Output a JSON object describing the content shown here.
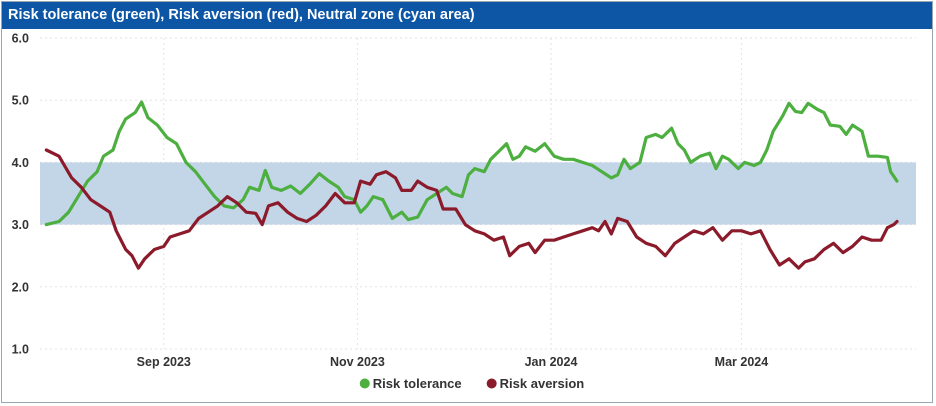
{
  "chart_data": {
    "type": "line",
    "title": "Risk tolerance (green), Risk aversion (red), Neutral zone (cyan area)",
    "ylim": [
      1.0,
      6.0
    ],
    "yticks": [
      "1.0",
      "2.0",
      "3.0",
      "4.0",
      "5.0",
      "6.0"
    ],
    "xlim": [
      "2023-07-24",
      "2024-04-25"
    ],
    "xticks": [
      {
        "date": "2023-09-01",
        "label": "Sep 2023"
      },
      {
        "date": "2023-11-01",
        "label": "Nov 2023"
      },
      {
        "date": "2024-01-01",
        "label": "Jan 2024"
      },
      {
        "date": "2024-03-01",
        "label": "Mar 2024"
      }
    ],
    "band": {
      "name": "Neutral zone",
      "lower": 3.0,
      "upper": 4.0,
      "color": "#c3d6e8"
    },
    "grid": true,
    "legend_position": "bottom",
    "series": [
      {
        "name": "Risk tolerance",
        "color": "#4caf3f",
        "points": [
          [
            "2023-07-26",
            3.0
          ],
          [
            "2023-07-30",
            3.05
          ],
          [
            "2023-08-02",
            3.2
          ],
          [
            "2023-08-05",
            3.45
          ],
          [
            "2023-08-08",
            3.7
          ],
          [
            "2023-08-11",
            3.85
          ],
          [
            "2023-08-13",
            4.1
          ],
          [
            "2023-08-16",
            4.2
          ],
          [
            "2023-08-18",
            4.5
          ],
          [
            "2023-08-20",
            4.7
          ],
          [
            "2023-08-23",
            4.8
          ],
          [
            "2023-08-25",
            4.97
          ],
          [
            "2023-08-27",
            4.72
          ],
          [
            "2023-08-30",
            4.6
          ],
          [
            "2023-09-02",
            4.4
          ],
          [
            "2023-09-05",
            4.3
          ],
          [
            "2023-09-08",
            4.0
          ],
          [
            "2023-09-11",
            3.85
          ],
          [
            "2023-09-14",
            3.65
          ],
          [
            "2023-09-17",
            3.45
          ],
          [
            "2023-09-20",
            3.3
          ],
          [
            "2023-09-23",
            3.27
          ],
          [
            "2023-09-26",
            3.4
          ],
          [
            "2023-09-28",
            3.6
          ],
          [
            "2023-10-01",
            3.55
          ],
          [
            "2023-10-03",
            3.87
          ],
          [
            "2023-10-05",
            3.6
          ],
          [
            "2023-10-08",
            3.55
          ],
          [
            "2023-10-11",
            3.62
          ],
          [
            "2023-10-14",
            3.5
          ],
          [
            "2023-10-17",
            3.65
          ],
          [
            "2023-10-20",
            3.82
          ],
          [
            "2023-10-23",
            3.7
          ],
          [
            "2023-10-26",
            3.6
          ],
          [
            "2023-10-28",
            3.45
          ],
          [
            "2023-10-31",
            3.4
          ],
          [
            "2023-11-02",
            3.2
          ],
          [
            "2023-11-04",
            3.3
          ],
          [
            "2023-11-06",
            3.45
          ],
          [
            "2023-11-09",
            3.4
          ],
          [
            "2023-11-12",
            3.1
          ],
          [
            "2023-11-15",
            3.2
          ],
          [
            "2023-11-17",
            3.08
          ],
          [
            "2023-11-20",
            3.12
          ],
          [
            "2023-11-23",
            3.4
          ],
          [
            "2023-11-26",
            3.5
          ],
          [
            "2023-11-29",
            3.6
          ],
          [
            "2023-12-01",
            3.5
          ],
          [
            "2023-12-04",
            3.45
          ],
          [
            "2023-12-06",
            3.8
          ],
          [
            "2023-12-08",
            3.9
          ],
          [
            "2023-12-11",
            3.85
          ],
          [
            "2023-12-13",
            4.05
          ],
          [
            "2023-12-16",
            4.2
          ],
          [
            "2023-12-18",
            4.3
          ],
          [
            "2023-12-20",
            4.05
          ],
          [
            "2023-12-22",
            4.1
          ],
          [
            "2023-12-24",
            4.25
          ],
          [
            "2023-12-27",
            4.18
          ],
          [
            "2023-12-30",
            4.3
          ],
          [
            "2024-01-02",
            4.1
          ],
          [
            "2024-01-05",
            4.05
          ],
          [
            "2024-01-08",
            4.05
          ],
          [
            "2024-01-11",
            4.0
          ],
          [
            "2024-01-14",
            3.95
          ],
          [
            "2024-01-17",
            3.85
          ],
          [
            "2024-01-20",
            3.75
          ],
          [
            "2024-01-22",
            3.8
          ],
          [
            "2024-01-24",
            4.05
          ],
          [
            "2024-01-26",
            3.9
          ],
          [
            "2024-01-29",
            4.0
          ],
          [
            "2024-01-31",
            4.4
          ],
          [
            "2024-02-03",
            4.45
          ],
          [
            "2024-02-05",
            4.4
          ],
          [
            "2024-02-08",
            4.55
          ],
          [
            "2024-02-10",
            4.3
          ],
          [
            "2024-02-12",
            4.2
          ],
          [
            "2024-02-14",
            4.0
          ],
          [
            "2024-02-17",
            4.1
          ],
          [
            "2024-02-20",
            4.15
          ],
          [
            "2024-02-22",
            3.9
          ],
          [
            "2024-02-24",
            4.1
          ],
          [
            "2024-02-26",
            4.05
          ],
          [
            "2024-02-29",
            3.9
          ],
          [
            "2024-03-02",
            4.0
          ],
          [
            "2024-03-05",
            3.95
          ],
          [
            "2024-03-07",
            4.0
          ],
          [
            "2024-03-09",
            4.2
          ],
          [
            "2024-03-11",
            4.5
          ],
          [
            "2024-03-14",
            4.75
          ],
          [
            "2024-03-16",
            4.95
          ],
          [
            "2024-03-18",
            4.82
          ],
          [
            "2024-03-20",
            4.8
          ],
          [
            "2024-03-22",
            4.95
          ],
          [
            "2024-03-25",
            4.85
          ],
          [
            "2024-03-27",
            4.8
          ],
          [
            "2024-03-29",
            4.6
          ],
          [
            "2024-04-01",
            4.58
          ],
          [
            "2024-04-03",
            4.45
          ],
          [
            "2024-04-05",
            4.6
          ],
          [
            "2024-04-08",
            4.5
          ],
          [
            "2024-04-10",
            4.1
          ],
          [
            "2024-04-13",
            4.1
          ],
          [
            "2024-04-16",
            4.08
          ],
          [
            "2024-04-17",
            3.85
          ],
          [
            "2024-04-19",
            3.7
          ]
        ]
      },
      {
        "name": "Risk aversion",
        "color": "#8b1a2a",
        "points": [
          [
            "2023-07-26",
            4.2
          ],
          [
            "2023-07-30",
            4.1
          ],
          [
            "2023-08-03",
            3.75
          ],
          [
            "2023-08-06",
            3.6
          ],
          [
            "2023-08-09",
            3.4
          ],
          [
            "2023-08-12",
            3.3
          ],
          [
            "2023-08-15",
            3.2
          ],
          [
            "2023-08-17",
            2.9
          ],
          [
            "2023-08-20",
            2.6
          ],
          [
            "2023-08-22",
            2.5
          ],
          [
            "2023-08-24",
            2.3
          ],
          [
            "2023-08-26",
            2.45
          ],
          [
            "2023-08-29",
            2.6
          ],
          [
            "2023-09-01",
            2.65
          ],
          [
            "2023-09-03",
            2.8
          ],
          [
            "2023-09-06",
            2.85
          ],
          [
            "2023-09-09",
            2.9
          ],
          [
            "2023-09-12",
            3.1
          ],
          [
            "2023-09-15",
            3.2
          ],
          [
            "2023-09-18",
            3.3
          ],
          [
            "2023-09-21",
            3.45
          ],
          [
            "2023-09-24",
            3.35
          ],
          [
            "2023-09-27",
            3.2
          ],
          [
            "2023-09-30",
            3.18
          ],
          [
            "2023-10-02",
            3.0
          ],
          [
            "2023-10-04",
            3.3
          ],
          [
            "2023-10-07",
            3.35
          ],
          [
            "2023-10-10",
            3.2
          ],
          [
            "2023-10-13",
            3.1
          ],
          [
            "2023-10-16",
            3.05
          ],
          [
            "2023-10-19",
            3.15
          ],
          [
            "2023-10-22",
            3.3
          ],
          [
            "2023-10-25",
            3.5
          ],
          [
            "2023-10-28",
            3.35
          ],
          [
            "2023-10-31",
            3.35
          ],
          [
            "2023-11-02",
            3.7
          ],
          [
            "2023-11-05",
            3.65
          ],
          [
            "2023-11-07",
            3.8
          ],
          [
            "2023-11-10",
            3.85
          ],
          [
            "2023-11-13",
            3.75
          ],
          [
            "2023-11-15",
            3.55
          ],
          [
            "2023-11-18",
            3.55
          ],
          [
            "2023-11-20",
            3.7
          ],
          [
            "2023-11-23",
            3.6
          ],
          [
            "2023-11-26",
            3.55
          ],
          [
            "2023-11-28",
            3.25
          ],
          [
            "2023-12-02",
            3.25
          ],
          [
            "2023-12-05",
            3.0
          ],
          [
            "2023-12-08",
            2.9
          ],
          [
            "2023-12-11",
            2.85
          ],
          [
            "2023-12-14",
            2.75
          ],
          [
            "2023-12-17",
            2.8
          ],
          [
            "2023-12-19",
            2.5
          ],
          [
            "2023-12-22",
            2.65
          ],
          [
            "2023-12-25",
            2.7
          ],
          [
            "2023-12-27",
            2.55
          ],
          [
            "2023-12-30",
            2.75
          ],
          [
            "2024-01-02",
            2.75
          ],
          [
            "2024-01-05",
            2.8
          ],
          [
            "2024-01-08",
            2.85
          ],
          [
            "2024-01-11",
            2.9
          ],
          [
            "2024-01-14",
            2.95
          ],
          [
            "2024-01-16",
            2.9
          ],
          [
            "2024-01-18",
            3.05
          ],
          [
            "2024-01-20",
            2.85
          ],
          [
            "2024-01-22",
            3.1
          ],
          [
            "2024-01-25",
            3.05
          ],
          [
            "2024-01-28",
            2.8
          ],
          [
            "2024-01-31",
            2.7
          ],
          [
            "2024-02-03",
            2.65
          ],
          [
            "2024-02-06",
            2.5
          ],
          [
            "2024-02-09",
            2.7
          ],
          [
            "2024-02-12",
            2.8
          ],
          [
            "2024-02-15",
            2.9
          ],
          [
            "2024-02-18",
            2.85
          ],
          [
            "2024-02-21",
            2.95
          ],
          [
            "2024-02-24",
            2.75
          ],
          [
            "2024-02-27",
            2.9
          ],
          [
            "2024-03-01",
            2.9
          ],
          [
            "2024-03-04",
            2.85
          ],
          [
            "2024-03-07",
            2.9
          ],
          [
            "2024-03-10",
            2.6
          ],
          [
            "2024-03-13",
            2.35
          ],
          [
            "2024-03-16",
            2.45
          ],
          [
            "2024-03-19",
            2.3
          ],
          [
            "2024-03-21",
            2.4
          ],
          [
            "2024-03-24",
            2.45
          ],
          [
            "2024-03-27",
            2.6
          ],
          [
            "2024-03-30",
            2.7
          ],
          [
            "2024-04-02",
            2.55
          ],
          [
            "2024-04-05",
            2.65
          ],
          [
            "2024-04-08",
            2.8
          ],
          [
            "2024-04-11",
            2.75
          ],
          [
            "2024-04-14",
            2.75
          ],
          [
            "2024-04-16",
            2.95
          ],
          [
            "2024-04-18",
            3.0
          ],
          [
            "2024-04-19",
            3.05
          ]
        ]
      }
    ]
  }
}
